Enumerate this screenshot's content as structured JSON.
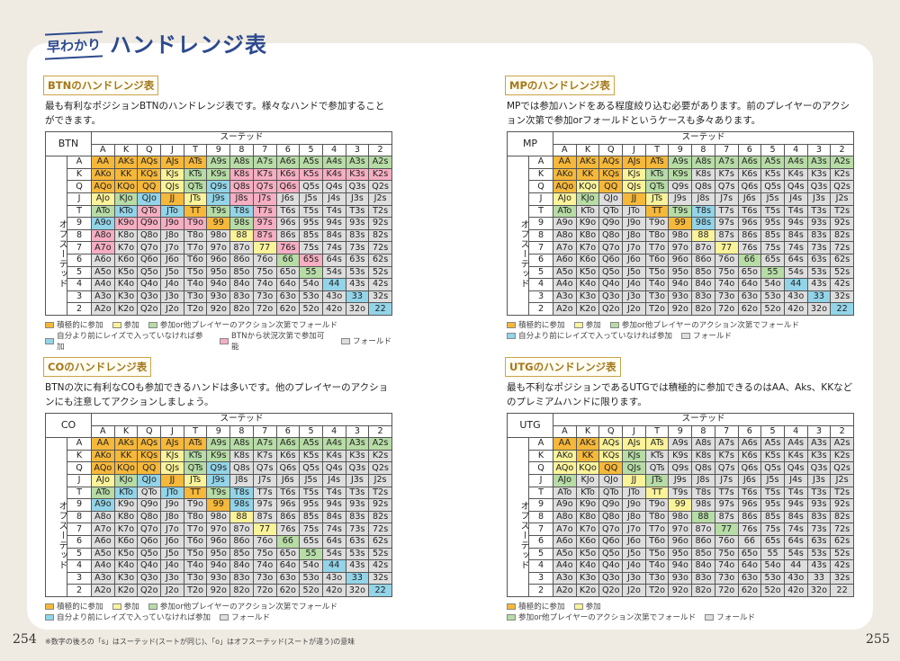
{
  "header": {
    "sub": "早わかり",
    "title": "ハンドレンジ表"
  },
  "ranks": [
    "A",
    "K",
    "Q",
    "J",
    "T",
    "9",
    "8",
    "7",
    "6",
    "5",
    "4",
    "3",
    "2"
  ],
  "suited_label": "スーテッド",
  "offsuit_label": "オフスーテッド",
  "colors": {
    "O": "#f6b83a",
    "Y": "#fbf39a",
    "G": "#b7dca6",
    "B": "#93d4e8",
    "P": "#f5aec2",
    "X": "#dedede"
  },
  "legend_labels": {
    "O": "積極的に参加",
    "Y": "参加",
    "G": "参加or他プレイヤーのアクション次第でフォールド",
    "B": "自分より前にレイズで入っていなければ参加",
    "P": "BTNから状況次第で参加可能",
    "X": "フォールド"
  },
  "hands": [
    [
      "AA",
      "AKs",
      "AQs",
      "AJs",
      "ATs",
      "A9s",
      "A8s",
      "A7s",
      "A6s",
      "A5s",
      "A4s",
      "A3s",
      "A2s"
    ],
    [
      "AKo",
      "KK",
      "KQs",
      "KJs",
      "KTs",
      "K9s",
      "K8s",
      "K7s",
      "K6s",
      "K5s",
      "K4s",
      "K3s",
      "K2s"
    ],
    [
      "AQo",
      "KQo",
      "QQ",
      "QJs",
      "QTs",
      "Q9s",
      "Q8s",
      "Q7s",
      "Q6s",
      "Q5s",
      "Q4s",
      "Q3s",
      "Q2s"
    ],
    [
      "AJo",
      "KJo",
      "QJo",
      "JJ",
      "JTs",
      "J9s",
      "J8s",
      "J7s",
      "J6s",
      "J5s",
      "J4s",
      "J3s",
      "J2s"
    ],
    [
      "ATo",
      "KTo",
      "QTo",
      "JTo",
      "TT",
      "T9s",
      "T8s",
      "T7s",
      "T6s",
      "T5s",
      "T4s",
      "T3s",
      "T2s"
    ],
    [
      "A9o",
      "K9o",
      "Q9o",
      "J9o",
      "T9o",
      "99",
      "98s",
      "97s",
      "96s",
      "95s",
      "94s",
      "93s",
      "92s"
    ],
    [
      "A8o",
      "K8o",
      "Q8o",
      "J8o",
      "T8o",
      "98o",
      "88",
      "87s",
      "86s",
      "85s",
      "84s",
      "83s",
      "82s"
    ],
    [
      "A7o",
      "K7o",
      "Q7o",
      "J7o",
      "T7o",
      "97o",
      "87o",
      "77",
      "76s",
      "75s",
      "74s",
      "73s",
      "72s"
    ],
    [
      "A6o",
      "K6o",
      "Q6o",
      "J6o",
      "T6o",
      "96o",
      "86o",
      "76o",
      "66",
      "65s",
      "64s",
      "63s",
      "62s"
    ],
    [
      "A5o",
      "K5o",
      "Q5o",
      "J5o",
      "T5o",
      "95o",
      "85o",
      "75o",
      "65o",
      "55",
      "54s",
      "53s",
      "52s"
    ],
    [
      "A4o",
      "K4o",
      "Q4o",
      "J4o",
      "T4o",
      "94o",
      "84o",
      "74o",
      "64o",
      "54o",
      "44",
      "43s",
      "42s"
    ],
    [
      "A3o",
      "K3o",
      "Q3o",
      "J3o",
      "T3o",
      "93o",
      "83o",
      "73o",
      "63o",
      "53o",
      "43o",
      "33",
      "32s"
    ],
    [
      "A2o",
      "K2o",
      "Q2o",
      "J2o",
      "T2o",
      "92o",
      "82o",
      "72o",
      "62o",
      "52o",
      "42o",
      "32o",
      "22"
    ]
  ],
  "sections": [
    {
      "id": "btn",
      "position": "BTN",
      "title": "BTNのハンドレンジ表",
      "desc": "最も有利なポジションBTNのハンドレンジ表です。様々なハンドで参加することができます。",
      "grid": [
        "OOOOOGGGGGGGG",
        "OOOYGGPPPPPPP",
        "OOOYGBPPPXXXX",
        "YGBOYBPPXXXXX",
        "GBPBOGBPXXXXX",
        "BPPPPOGPXXXXX",
        "PXXXXXYPXXXXX",
        "PXXXXXXYPXXXX",
        "XXXXXXXXGPXXX",
        "XXXXXXXXXGXXX",
        "XXXXXXXXXXBXX",
        "XXXXXXXXXXXBX",
        "XXXXXXXXXXXXB"
      ],
      "legend": [
        [
          "O",
          "Y",
          "G"
        ],
        [
          "B",
          "P",
          "X"
        ]
      ]
    },
    {
      "id": "mp",
      "position": "MP",
      "title": "MPのハンドレンジ表",
      "desc": "MPでは参加ハンドをある程度絞り込む必要があります。前のプレイヤーのアクション次第で参加orフォールドというケースも多々あります。",
      "grid": [
        "OOOOOGGGGGGGG",
        "OOOYGGXXXXXXX",
        "OYOYGXXXXXXXX",
        "YGXOYXXXXXXXX",
        "GXXXOGBXXXXXX",
        "XXXXXOBXXXXXX",
        "XXXXXXYXXXXXX",
        "XXXXXXXYXXXXX",
        "XXXXXXXXGXXXX",
        "XXXXXXXXXGXXX",
        "XXXXXXXXXXBXX",
        "XXXXXXXXXXXBX",
        "XXXXXXXXXXXXB"
      ],
      "legend": [
        [
          "O",
          "Y",
          "G"
        ],
        [
          "B",
          "X"
        ]
      ]
    },
    {
      "id": "co",
      "position": "CO",
      "title": "COのハンドレンジ表",
      "desc": "BTNの次に有利なCOも参加できるハンドは多いです。他のプレイヤーのアクションにも注意してアクションしましょう。",
      "grid": [
        "OOOOOGGGGGGGG",
        "OOOYGGXXXXXXX",
        "OOOYGBXXXXXXX",
        "YGBOYBXXXXXXX",
        "GBXBOGBXXXXXX",
        "BXXXXOBXXXXXX",
        "XXXXXXYXXXXXX",
        "XXXXXXXYXXXXX",
        "XXXXXXXXGXXXX",
        "XXXXXXXXXGXXX",
        "XXXXXXXXXXBXX",
        "XXXXXXXXXXXBX",
        "XXXXXXXXXXXXB"
      ],
      "legend": [
        [
          "O",
          "Y",
          "G"
        ],
        [
          "B",
          "X"
        ]
      ]
    },
    {
      "id": "utg",
      "position": "UTG",
      "title": "UTGのハンドレンジ表",
      "desc": "最も不利なポジションであるUTGでは積極的に参加できるのはAA、Aks、KKなどのプレミアムハンドに限ります。",
      "grid": [
        "OOYYYXXXXXXXX",
        "YOYGXXXXXXXXX",
        "YYOGXXXXXXXXX",
        "GXXYGXXXXXXXX",
        "XXXXYXXXXXXXX",
        "XXXXXYXXXXXXX",
        "XXXXXXGXXXXXX",
        "XXXXXXXGXXXXX",
        "XXXXXXXXXXXXX",
        "XXXXXXXXXXXXX",
        "XXXXXXXXXXXXX",
        "XXXXXXXXXXXXX",
        "XXXXXXXXXXXXX"
      ],
      "legend": [
        [
          "O",
          "Y"
        ],
        [
          "G",
          "X"
        ]
      ]
    }
  ],
  "footer": {
    "left_page": "254",
    "right_page": "255",
    "note": "※数字の後ろの「s」はスーテッド(スートが同じ)、「o」はオフスーテッド(スートが違う)の意味"
  }
}
